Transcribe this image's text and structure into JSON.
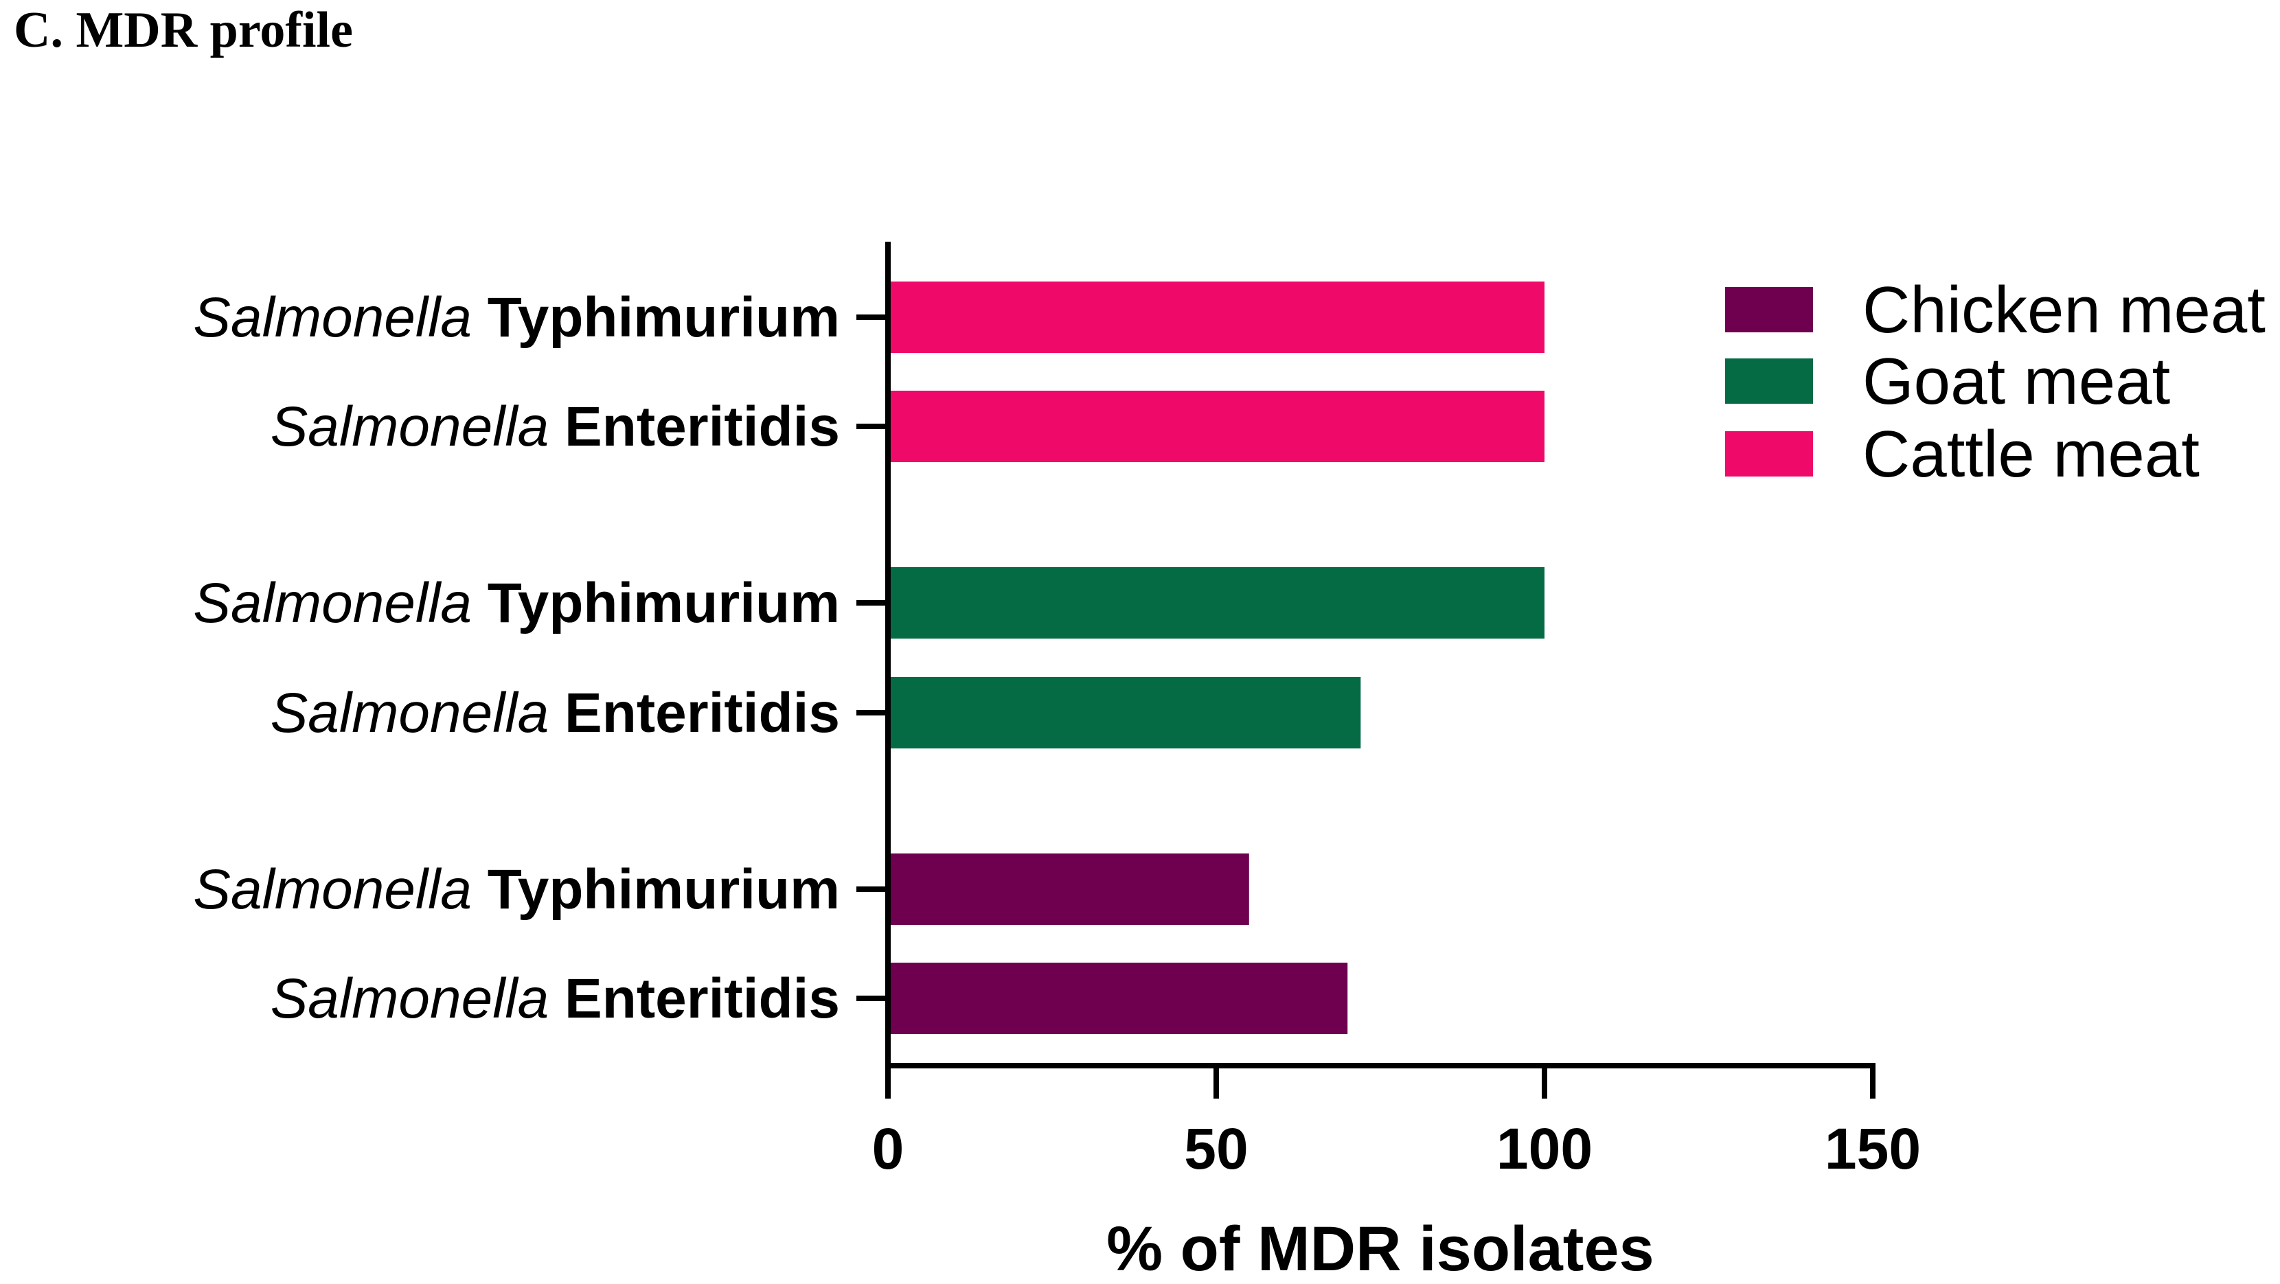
{
  "figure": {
    "title": "C. MDR profile"
  },
  "chart_data": {
    "type": "bar",
    "orientation": "horizontal",
    "title": "C. MDR profile",
    "xlabel": "% of MDR isolates",
    "ylabel": "",
    "xlim": [
      0,
      150
    ],
    "xticks": [
      "0",
      "50",
      "100",
      "150"
    ],
    "grid": false,
    "legend_position": "top-right",
    "series": [
      {
        "name": "Cattle meat",
        "color": "#ef0a6a",
        "items": [
          {
            "genus": "Salmonella",
            "serovar": "Typhimurium",
            "value": 100
          },
          {
            "genus": "Salmonella",
            "serovar": "Enteritidis",
            "value": 100
          }
        ]
      },
      {
        "name": "Goat meat",
        "color": "#046b45",
        "items": [
          {
            "genus": "Salmonella",
            "serovar": "Typhimurium",
            "value": 100
          },
          {
            "genus": "Salmonella",
            "serovar": "Enteritidis",
            "value": 72
          }
        ]
      },
      {
        "name": "Chicken meat",
        "color": "#6e004f",
        "items": [
          {
            "genus": "Salmonella",
            "serovar": "Typhimurium",
            "value": 55
          },
          {
            "genus": "Salmonella",
            "serovar": "Enteritidis",
            "value": 70
          }
        ]
      }
    ],
    "legend_order": [
      "Chicken meat",
      "Goat meat",
      "Cattle meat"
    ]
  }
}
